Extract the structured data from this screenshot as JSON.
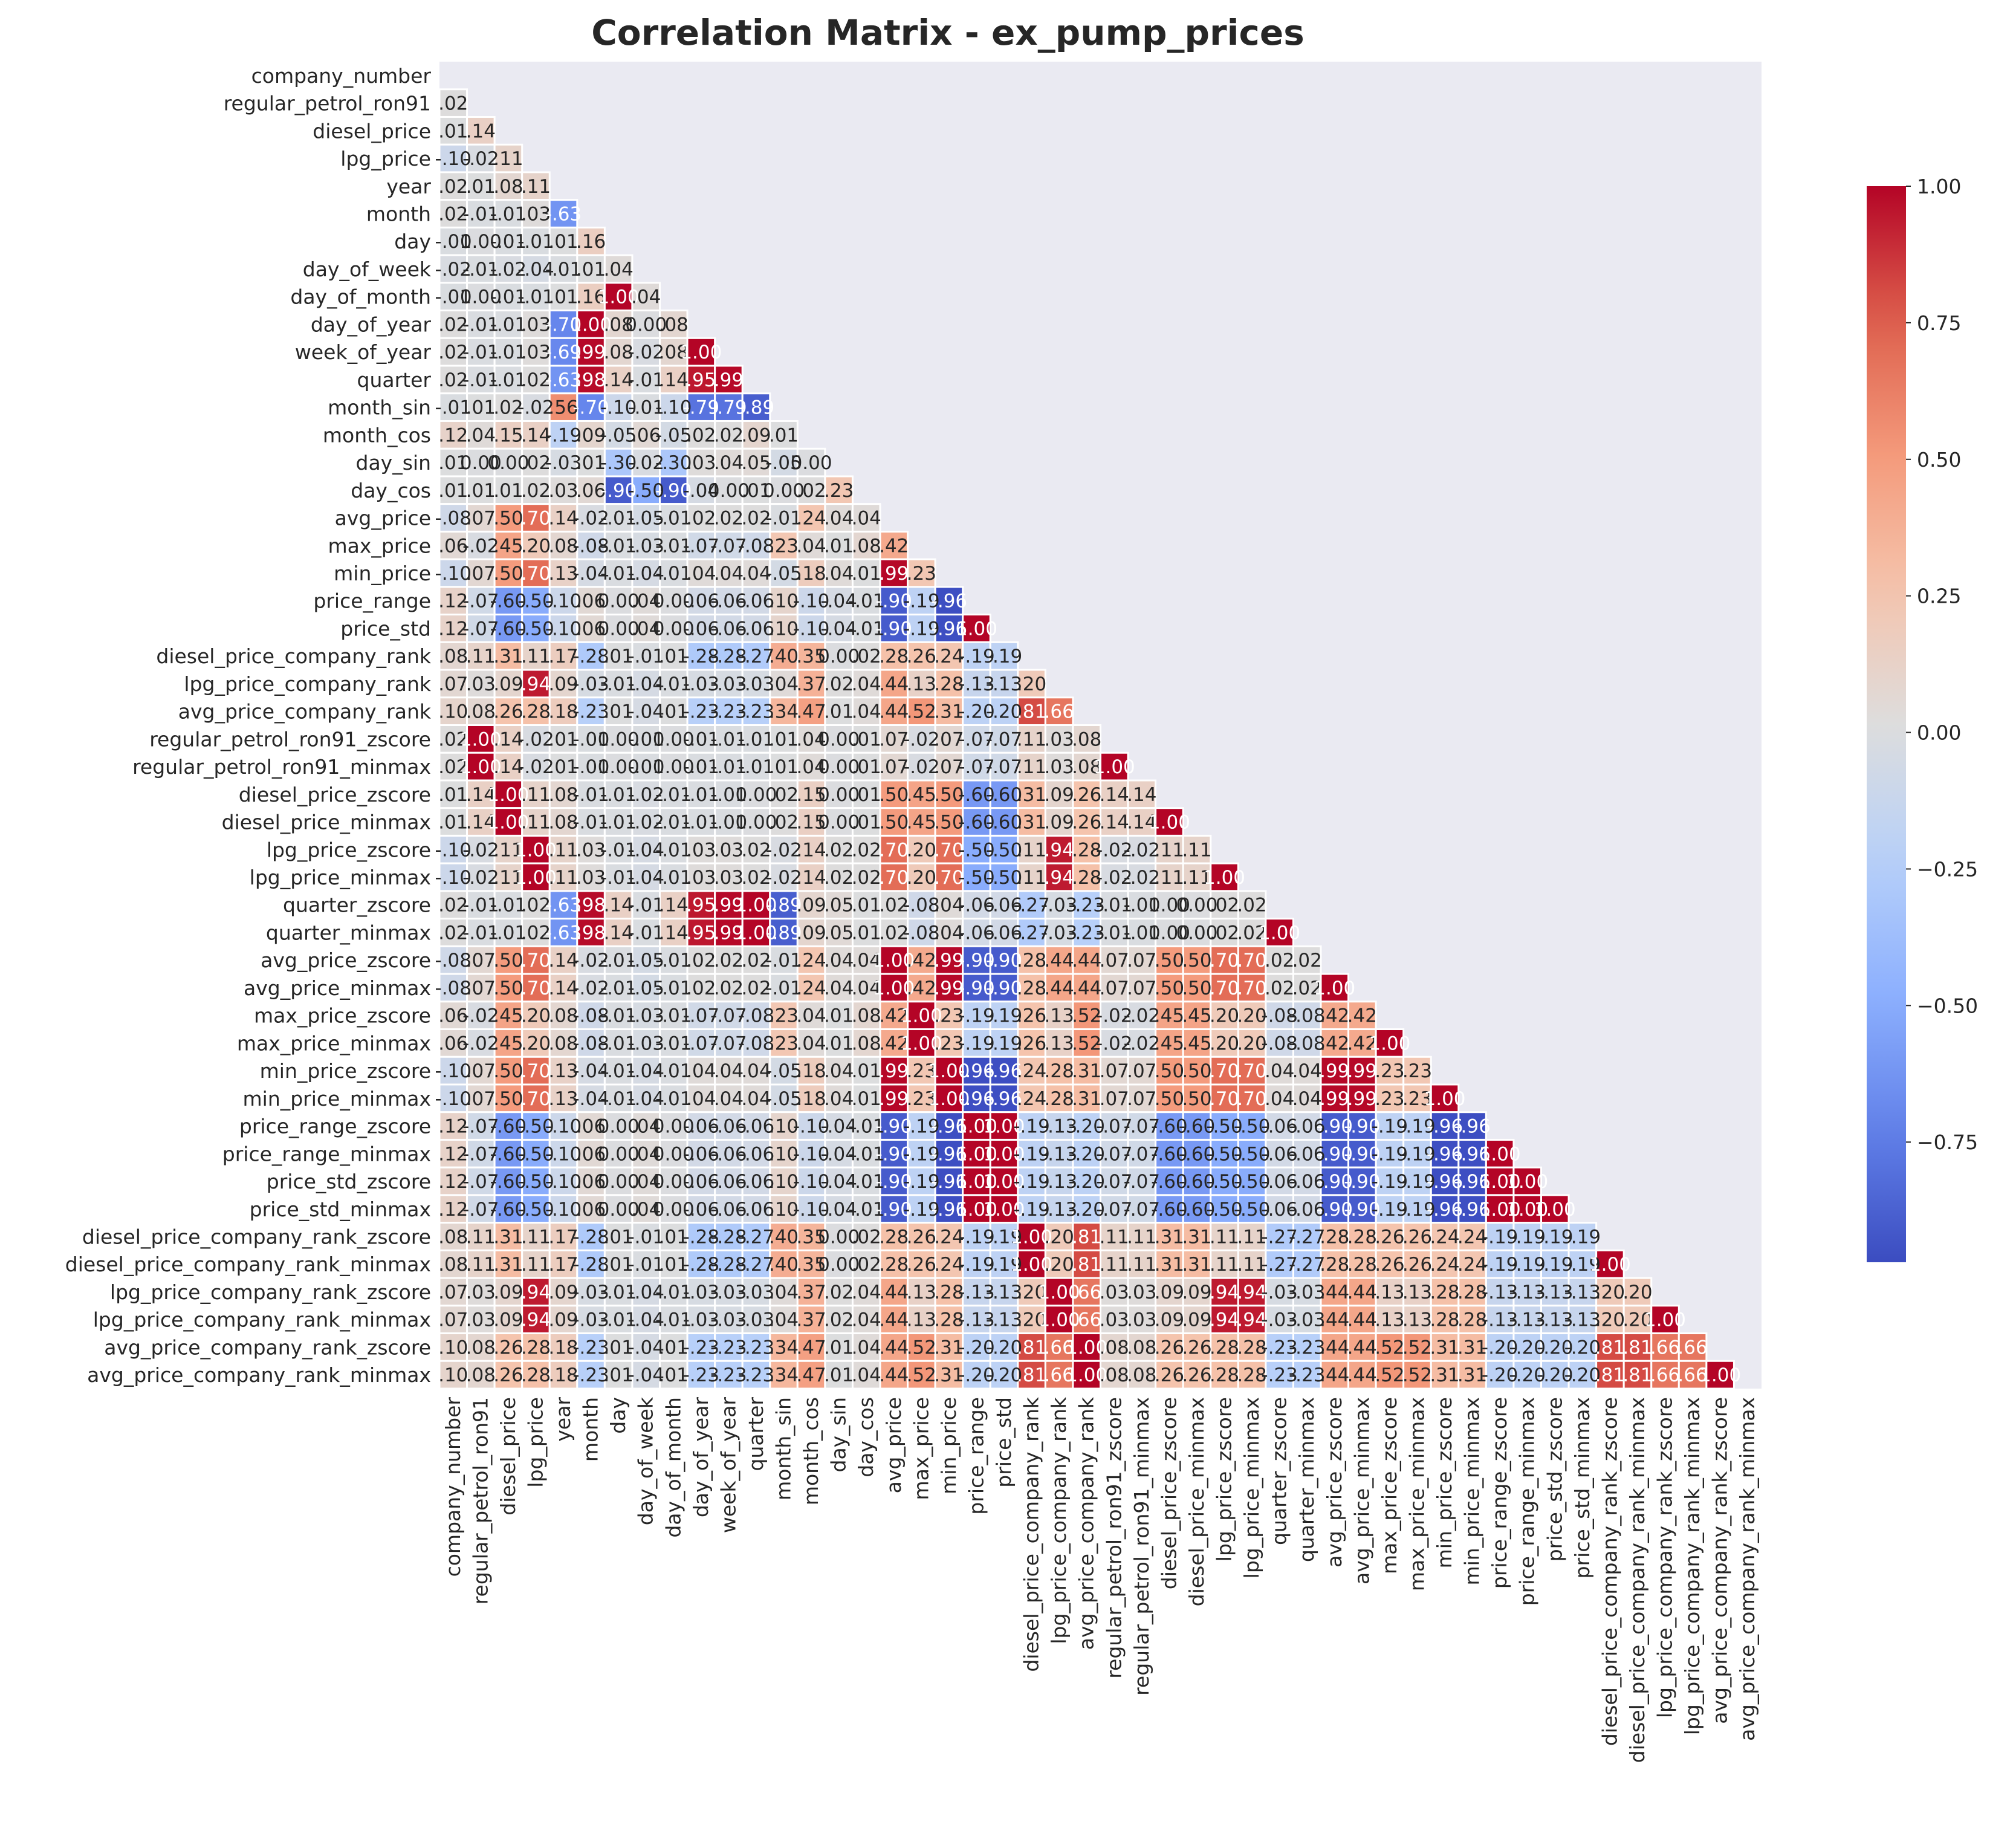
{
  "chart_data": {
    "type": "heatmap",
    "title": "Correlation Matrix - ex_pump_prices",
    "labels": [
      "company_number",
      "regular_petrol_ron91",
      "diesel_price",
      "lpg_price",
      "year",
      "month",
      "day",
      "day_of_week",
      "day_of_month",
      "day_of_year",
      "week_of_year",
      "quarter",
      "month_sin",
      "month_cos",
      "day_sin",
      "day_cos",
      "avg_price",
      "max_price",
      "min_price",
      "price_range",
      "price_std",
      "diesel_price_company_rank",
      "lpg_price_company_rank",
      "avg_price_company_rank",
      "regular_petrol_ron91_zscore",
      "regular_petrol_ron91_minmax",
      "diesel_price_zscore",
      "diesel_price_minmax",
      "lpg_price_zscore",
      "lpg_price_minmax",
      "quarter_zscore",
      "quarter_minmax",
      "avg_price_zscore",
      "avg_price_minmax",
      "max_price_zscore",
      "max_price_minmax",
      "min_price_zscore",
      "min_price_minmax",
      "price_range_zscore",
      "price_range_minmax",
      "price_std_zscore",
      "price_std_minmax",
      "diesel_price_company_rank_zscore",
      "diesel_price_company_rank_minmax",
      "lpg_price_company_rank_zscore",
      "lpg_price_company_rank_minmax",
      "avg_price_company_rank_zscore",
      "avg_price_company_rank_minmax"
    ],
    "rows": [
      [],
      [
        0.02
      ],
      [
        0.01,
        0.14
      ],
      [
        -0.1,
        -0.02,
        0.11
      ],
      [
        0.02,
        0.01,
        0.08,
        0.11
      ],
      [
        0.02,
        -0.01,
        -0.01,
        0.03,
        -0.63
      ],
      [
        -0.01,
        0.0,
        -0.01,
        -0.01,
        0.01,
        0.16
      ],
      [
        -0.02,
        -0.01,
        -0.02,
        -0.04,
        -0.01,
        0.01,
        0.04
      ],
      [
        -0.01,
        0.0,
        -0.01,
        -0.01,
        0.01,
        0.16,
        1.0,
        0.04
      ],
      [
        0.02,
        -0.01,
        -0.01,
        0.03,
        -0.7,
        1.0,
        0.08,
        0.0,
        0.08
      ],
      [
        0.02,
        -0.01,
        -0.01,
        0.03,
        -0.69,
        0.99,
        0.08,
        -0.02,
        0.08,
        1.0
      ],
      [
        0.02,
        -0.01,
        -0.01,
        0.02,
        -0.63,
        0.98,
        0.14,
        -0.01,
        0.14,
        0.95,
        0.99
      ],
      [
        -0.01,
        0.01,
        0.02,
        -0.02,
        0.56,
        -0.7,
        -0.1,
        -0.01,
        -0.1,
        -0.79,
        -0.79,
        -0.89
      ],
      [
        0.12,
        0.04,
        0.15,
        0.14,
        -0.19,
        0.09,
        -0.05,
        0.06,
        -0.05,
        0.02,
        0.02,
        0.09,
        0.01
      ],
      [
        0.01,
        0.0,
        0.0,
        0.02,
        -0.03,
        0.01,
        -0.3,
        -0.02,
        -0.3,
        0.03,
        0.04,
        0.05,
        -0.05,
        0.0
      ],
      [
        0.01,
        0.01,
        0.01,
        0.02,
        0.03,
        0.06,
        -0.9,
        -0.5,
        -0.9,
        -0.04,
        0.0,
        0.01,
        0.0,
        0.02,
        0.23
      ],
      [
        -0.08,
        0.07,
        0.5,
        0.7,
        0.14,
        -0.02,
        -0.01,
        -0.05,
        -0.01,
        0.02,
        0.02,
        0.02,
        -0.01,
        0.24,
        0.04,
        0.04
      ],
      [
        0.06,
        -0.02,
        0.45,
        0.2,
        0.08,
        -0.08,
        -0.01,
        -0.03,
        -0.01,
        -0.07,
        -0.07,
        -0.08,
        0.23,
        0.04,
        0.01,
        0.08,
        0.42
      ],
      [
        -0.1,
        0.07,
        0.5,
        0.7,
        0.13,
        -0.04,
        -0.01,
        -0.04,
        -0.01,
        0.04,
        0.04,
        0.04,
        -0.05,
        0.18,
        0.04,
        0.01,
        0.99,
        0.23
      ],
      [
        0.12,
        -0.07,
        -0.6,
        -0.5,
        -0.1,
        0.06,
        0.0,
        0.04,
        0.0,
        -0.06,
        -0.06,
        -0.06,
        0.1,
        -0.1,
        -0.04,
        -0.01,
        -0.9,
        -0.19,
        -0.96
      ],
      [
        0.12,
        -0.07,
        -0.6,
        -0.5,
        -0.1,
        0.06,
        0.0,
        0.04,
        0.0,
        -0.06,
        -0.06,
        -0.06,
        0.1,
        -0.1,
        -0.04,
        -0.01,
        -0.9,
        -0.19,
        -0.96,
        1.0
      ],
      [
        0.08,
        0.11,
        0.31,
        0.11,
        0.17,
        -0.28,
        0.01,
        -0.01,
        0.01,
        -0.28,
        -0.28,
        -0.27,
        0.4,
        0.35,
        0.0,
        0.02,
        0.28,
        0.26,
        0.24,
        -0.19,
        -0.19
      ],
      [
        0.07,
        0.03,
        0.09,
        0.94,
        0.09,
        -0.03,
        -0.01,
        -0.04,
        -0.01,
        -0.03,
        -0.03,
        -0.03,
        0.04,
        0.37,
        0.02,
        0.04,
        0.44,
        0.13,
        0.28,
        -0.13,
        -0.13,
        0.2
      ],
      [
        0.1,
        0.08,
        0.26,
        0.28,
        0.18,
        -0.23,
        0.01,
        -0.04,
        0.01,
        -0.23,
        -0.23,
        -0.23,
        0.34,
        0.47,
        0.01,
        0.04,
        0.44,
        0.52,
        0.31,
        -0.2,
        -0.2,
        0.81,
        0.66
      ],
      [
        0.02,
        1.0,
        0.14,
        -0.02,
        0.01,
        -0.01,
        0.0,
        -0.01,
        0.0,
        -0.01,
        -0.01,
        -0.01,
        0.01,
        0.04,
        0.0,
        0.01,
        0.07,
        -0.02,
        0.07,
        -0.07,
        -0.07,
        0.11,
        0.03,
        0.08
      ],
      [
        0.02,
        1.0,
        0.14,
        -0.02,
        0.01,
        -0.01,
        0.0,
        -0.01,
        0.0,
        -0.01,
        -0.01,
        -0.01,
        0.01,
        0.04,
        0.0,
        0.01,
        0.07,
        -0.02,
        0.07,
        -0.07,
        -0.07,
        0.11,
        0.03,
        0.08,
        1.0
      ],
      [
        0.01,
        0.14,
        1.0,
        0.11,
        0.08,
        -0.01,
        -0.01,
        -0.02,
        -0.01,
        -0.01,
        -0.01,
        0.0,
        0.02,
        0.15,
        0.0,
        0.01,
        0.5,
        0.45,
        0.5,
        -0.6,
        -0.6,
        0.31,
        0.09,
        0.26,
        0.14,
        0.14
      ],
      [
        0.01,
        0.14,
        1.0,
        0.11,
        0.08,
        -0.01,
        -0.01,
        -0.02,
        -0.01,
        -0.01,
        -0.01,
        0.0,
        0.02,
        0.15,
        0.0,
        0.01,
        0.5,
        0.45,
        0.5,
        -0.6,
        -0.6,
        0.31,
        0.09,
        0.26,
        0.14,
        0.14,
        1.0
      ],
      [
        -0.1,
        -0.02,
        0.11,
        1.0,
        0.11,
        0.03,
        -0.01,
        -0.04,
        -0.01,
        0.03,
        0.03,
        0.02,
        -0.02,
        0.14,
        0.02,
        0.02,
        0.7,
        0.2,
        0.7,
        -0.5,
        -0.5,
        0.11,
        0.94,
        0.28,
        -0.02,
        -0.02,
        0.11,
        0.11
      ],
      [
        -0.1,
        -0.02,
        0.11,
        1.0,
        0.11,
        0.03,
        -0.01,
        -0.04,
        -0.01,
        0.03,
        0.03,
        0.02,
        -0.02,
        0.14,
        0.02,
        0.02,
        0.7,
        0.2,
        0.7,
        -0.5,
        -0.5,
        0.11,
        0.94,
        0.28,
        -0.02,
        -0.02,
        0.11,
        0.11,
        1.0
      ],
      [
        0.02,
        -0.01,
        -0.01,
        0.02,
        -0.63,
        0.98,
        0.14,
        -0.01,
        0.14,
        0.95,
        0.99,
        1.0,
        -0.89,
        0.09,
        0.05,
        0.01,
        0.02,
        -0.08,
        0.04,
        -0.06,
        -0.06,
        -0.27,
        -0.03,
        -0.23,
        -0.01,
        -0.01,
        0.0,
        0.0,
        0.02,
        0.02
      ],
      [
        0.02,
        -0.01,
        -0.01,
        0.02,
        -0.63,
        0.98,
        0.14,
        -0.01,
        0.14,
        0.95,
        0.99,
        1.0,
        -0.89,
        0.09,
        0.05,
        0.01,
        0.02,
        -0.08,
        0.04,
        -0.06,
        -0.06,
        -0.27,
        -0.03,
        -0.23,
        -0.01,
        -0.01,
        0.0,
        0.0,
        0.02,
        0.02,
        1.0
      ],
      [
        -0.08,
        0.07,
        0.5,
        0.7,
        0.14,
        -0.02,
        -0.01,
        -0.05,
        -0.01,
        0.02,
        0.02,
        0.02,
        -0.01,
        0.24,
        0.04,
        0.04,
        1.0,
        0.42,
        0.99,
        -0.9,
        -0.9,
        0.28,
        0.44,
        0.44,
        0.07,
        0.07,
        0.5,
        0.5,
        0.7,
        0.7,
        0.02,
        0.02
      ],
      [
        -0.08,
        0.07,
        0.5,
        0.7,
        0.14,
        -0.02,
        -0.01,
        -0.05,
        -0.01,
        0.02,
        0.02,
        0.02,
        -0.01,
        0.24,
        0.04,
        0.04,
        1.0,
        0.42,
        0.99,
        -0.9,
        -0.9,
        0.28,
        0.44,
        0.44,
        0.07,
        0.07,
        0.5,
        0.5,
        0.7,
        0.7,
        0.02,
        0.02,
        1.0
      ],
      [
        0.06,
        -0.02,
        0.45,
        0.2,
        0.08,
        -0.08,
        -0.01,
        -0.03,
        -0.01,
        -0.07,
        -0.07,
        -0.08,
        0.23,
        0.04,
        0.01,
        0.08,
        0.42,
        1.0,
        0.23,
        -0.19,
        -0.19,
        0.26,
        0.13,
        0.52,
        -0.02,
        -0.02,
        0.45,
        0.45,
        0.2,
        0.2,
        -0.08,
        -0.08,
        0.42,
        0.42
      ],
      [
        0.06,
        -0.02,
        0.45,
        0.2,
        0.08,
        -0.08,
        -0.01,
        -0.03,
        -0.01,
        -0.07,
        -0.07,
        -0.08,
        0.23,
        0.04,
        0.01,
        0.08,
        0.42,
        1.0,
        0.23,
        -0.19,
        -0.19,
        0.26,
        0.13,
        0.52,
        -0.02,
        -0.02,
        0.45,
        0.45,
        0.2,
        0.2,
        -0.08,
        -0.08,
        0.42,
        0.42,
        1.0
      ],
      [
        -0.1,
        0.07,
        0.5,
        0.7,
        0.13,
        -0.04,
        -0.01,
        -0.04,
        -0.01,
        0.04,
        0.04,
        0.04,
        -0.05,
        0.18,
        0.04,
        0.01,
        0.99,
        0.23,
        1.0,
        -0.96,
        -0.96,
        0.24,
        0.28,
        0.31,
        0.07,
        0.07,
        0.5,
        0.5,
        0.7,
        0.7,
        0.04,
        0.04,
        0.99,
        0.99,
        0.23,
        0.23
      ],
      [
        -0.1,
        0.07,
        0.5,
        0.7,
        0.13,
        -0.04,
        -0.01,
        -0.04,
        -0.01,
        0.04,
        0.04,
        0.04,
        -0.05,
        0.18,
        0.04,
        0.01,
        0.99,
        0.23,
        1.0,
        -0.96,
        -0.96,
        0.24,
        0.28,
        0.31,
        0.07,
        0.07,
        0.5,
        0.5,
        0.7,
        0.7,
        0.04,
        0.04,
        0.99,
        0.99,
        0.23,
        0.23,
        1.0
      ],
      [
        0.12,
        -0.07,
        -0.6,
        -0.5,
        -0.1,
        0.06,
        0.0,
        0.04,
        0.0,
        -0.06,
        -0.06,
        -0.06,
        0.1,
        -0.1,
        -0.04,
        -0.01,
        -0.9,
        -0.19,
        -0.96,
        1.0,
        1.0,
        -0.19,
        -0.13,
        -0.2,
        -0.07,
        -0.07,
        -0.6,
        -0.6,
        -0.5,
        -0.5,
        -0.06,
        -0.06,
        -0.9,
        -0.9,
        -0.19,
        -0.19,
        -0.96,
        -0.96
      ],
      [
        0.12,
        -0.07,
        -0.6,
        -0.5,
        -0.1,
        0.06,
        0.0,
        0.04,
        0.0,
        -0.06,
        -0.06,
        -0.06,
        0.1,
        -0.1,
        -0.04,
        -0.01,
        -0.9,
        -0.19,
        -0.96,
        1.0,
        1.0,
        -0.19,
        -0.13,
        -0.2,
        -0.07,
        -0.07,
        -0.6,
        -0.6,
        -0.5,
        -0.5,
        -0.06,
        -0.06,
        -0.9,
        -0.9,
        -0.19,
        -0.19,
        -0.96,
        -0.96,
        1.0
      ],
      [
        0.12,
        -0.07,
        -0.6,
        -0.5,
        -0.1,
        0.06,
        0.0,
        0.04,
        0.0,
        -0.06,
        -0.06,
        -0.06,
        0.1,
        -0.1,
        -0.04,
        -0.01,
        -0.9,
        -0.19,
        -0.96,
        1.0,
        1.0,
        -0.19,
        -0.13,
        -0.2,
        -0.07,
        -0.07,
        -0.6,
        -0.6,
        -0.5,
        -0.5,
        -0.06,
        -0.06,
        -0.9,
        -0.9,
        -0.19,
        -0.19,
        -0.96,
        -0.96,
        1.0,
        1.0
      ],
      [
        0.12,
        -0.07,
        -0.6,
        -0.5,
        -0.1,
        0.06,
        0.0,
        0.04,
        0.0,
        -0.06,
        -0.06,
        -0.06,
        0.1,
        -0.1,
        -0.04,
        -0.01,
        -0.9,
        -0.19,
        -0.96,
        1.0,
        1.0,
        -0.19,
        -0.13,
        -0.2,
        -0.07,
        -0.07,
        -0.6,
        -0.6,
        -0.5,
        -0.5,
        -0.06,
        -0.06,
        -0.9,
        -0.9,
        -0.19,
        -0.19,
        -0.96,
        -0.96,
        1.0,
        1.0,
        1.0
      ],
      [
        0.08,
        0.11,
        0.31,
        0.11,
        0.17,
        -0.28,
        0.01,
        -0.01,
        0.01,
        -0.28,
        -0.28,
        -0.27,
        0.4,
        0.35,
        0.0,
        0.02,
        0.28,
        0.26,
        0.24,
        -0.19,
        -0.19,
        1.0,
        0.2,
        0.81,
        0.11,
        0.11,
        0.31,
        0.31,
        0.11,
        0.11,
        -0.27,
        -0.27,
        0.28,
        0.28,
        0.26,
        0.26,
        0.24,
        0.24,
        -0.19,
        -0.19,
        -0.19,
        -0.19
      ],
      [
        0.08,
        0.11,
        0.31,
        0.11,
        0.17,
        -0.28,
        0.01,
        -0.01,
        0.01,
        -0.28,
        -0.28,
        -0.27,
        0.4,
        0.35,
        0.0,
        0.02,
        0.28,
        0.26,
        0.24,
        -0.19,
        -0.19,
        1.0,
        0.2,
        0.81,
        0.11,
        0.11,
        0.31,
        0.31,
        0.11,
        0.11,
        -0.27,
        -0.27,
        0.28,
        0.28,
        0.26,
        0.26,
        0.24,
        0.24,
        -0.19,
        -0.19,
        -0.19,
        -0.19,
        1.0
      ],
      [
        0.07,
        0.03,
        0.09,
        0.94,
        0.09,
        -0.03,
        -0.01,
        -0.04,
        -0.01,
        -0.03,
        -0.03,
        -0.03,
        0.04,
        0.37,
        0.02,
        0.04,
        0.44,
        0.13,
        0.28,
        -0.13,
        -0.13,
        0.2,
        1.0,
        0.66,
        0.03,
        0.03,
        0.09,
        0.09,
        0.94,
        0.94,
        -0.03,
        -0.03,
        0.44,
        0.44,
        0.13,
        0.13,
        0.28,
        0.28,
        -0.13,
        -0.13,
        -0.13,
        -0.13,
        0.2,
        0.2
      ],
      [
        0.07,
        0.03,
        0.09,
        0.94,
        0.09,
        -0.03,
        -0.01,
        -0.04,
        -0.01,
        -0.03,
        -0.03,
        -0.03,
        0.04,
        0.37,
        0.02,
        0.04,
        0.44,
        0.13,
        0.28,
        -0.13,
        -0.13,
        0.2,
        1.0,
        0.66,
        0.03,
        0.03,
        0.09,
        0.09,
        0.94,
        0.94,
        -0.03,
        -0.03,
        0.44,
        0.44,
        0.13,
        0.13,
        0.28,
        0.28,
        -0.13,
        -0.13,
        -0.13,
        -0.13,
        0.2,
        0.2,
        1.0
      ],
      [
        0.1,
        0.08,
        0.26,
        0.28,
        0.18,
        -0.23,
        0.01,
        -0.04,
        0.01,
        -0.23,
        -0.23,
        -0.23,
        0.34,
        0.47,
        0.01,
        0.04,
        0.44,
        0.52,
        0.31,
        -0.2,
        -0.2,
        0.81,
        0.66,
        1.0,
        0.08,
        0.08,
        0.26,
        0.26,
        0.28,
        0.28,
        -0.23,
        -0.23,
        0.44,
        0.44,
        0.52,
        0.52,
        0.31,
        0.31,
        -0.2,
        -0.2,
        -0.2,
        -0.2,
        0.81,
        0.81,
        0.66,
        0.66
      ],
      [
        0.1,
        0.08,
        0.26,
        0.28,
        0.18,
        -0.23,
        0.01,
        -0.04,
        0.01,
        -0.23,
        -0.23,
        -0.23,
        0.34,
        0.47,
        0.01,
        0.04,
        0.44,
        0.52,
        0.31,
        -0.2,
        -0.2,
        0.81,
        0.66,
        1.0,
        0.08,
        0.08,
        0.26,
        0.26,
        0.28,
        0.28,
        -0.23,
        -0.23,
        0.44,
        0.44,
        0.52,
        0.52,
        0.31,
        0.31,
        -0.2,
        -0.2,
        -0.2,
        -0.2,
        0.81,
        0.81,
        0.66,
        0.66,
        1.0
      ]
    ],
    "colorbar": {
      "ticks": [
        "1.00",
        "0.75",
        "0.50",
        "0.25",
        "0.00",
        "−0.25",
        "−0.50",
        "−0.75"
      ],
      "tick_values": [
        1.0,
        0.75,
        0.5,
        0.25,
        0.0,
        -0.25,
        -0.5,
        -0.75
      ],
      "vmin": -0.97,
      "vmax": 1.0
    },
    "colormap": "coolwarm",
    "mask": "upper-triangle",
    "grid": true
  }
}
